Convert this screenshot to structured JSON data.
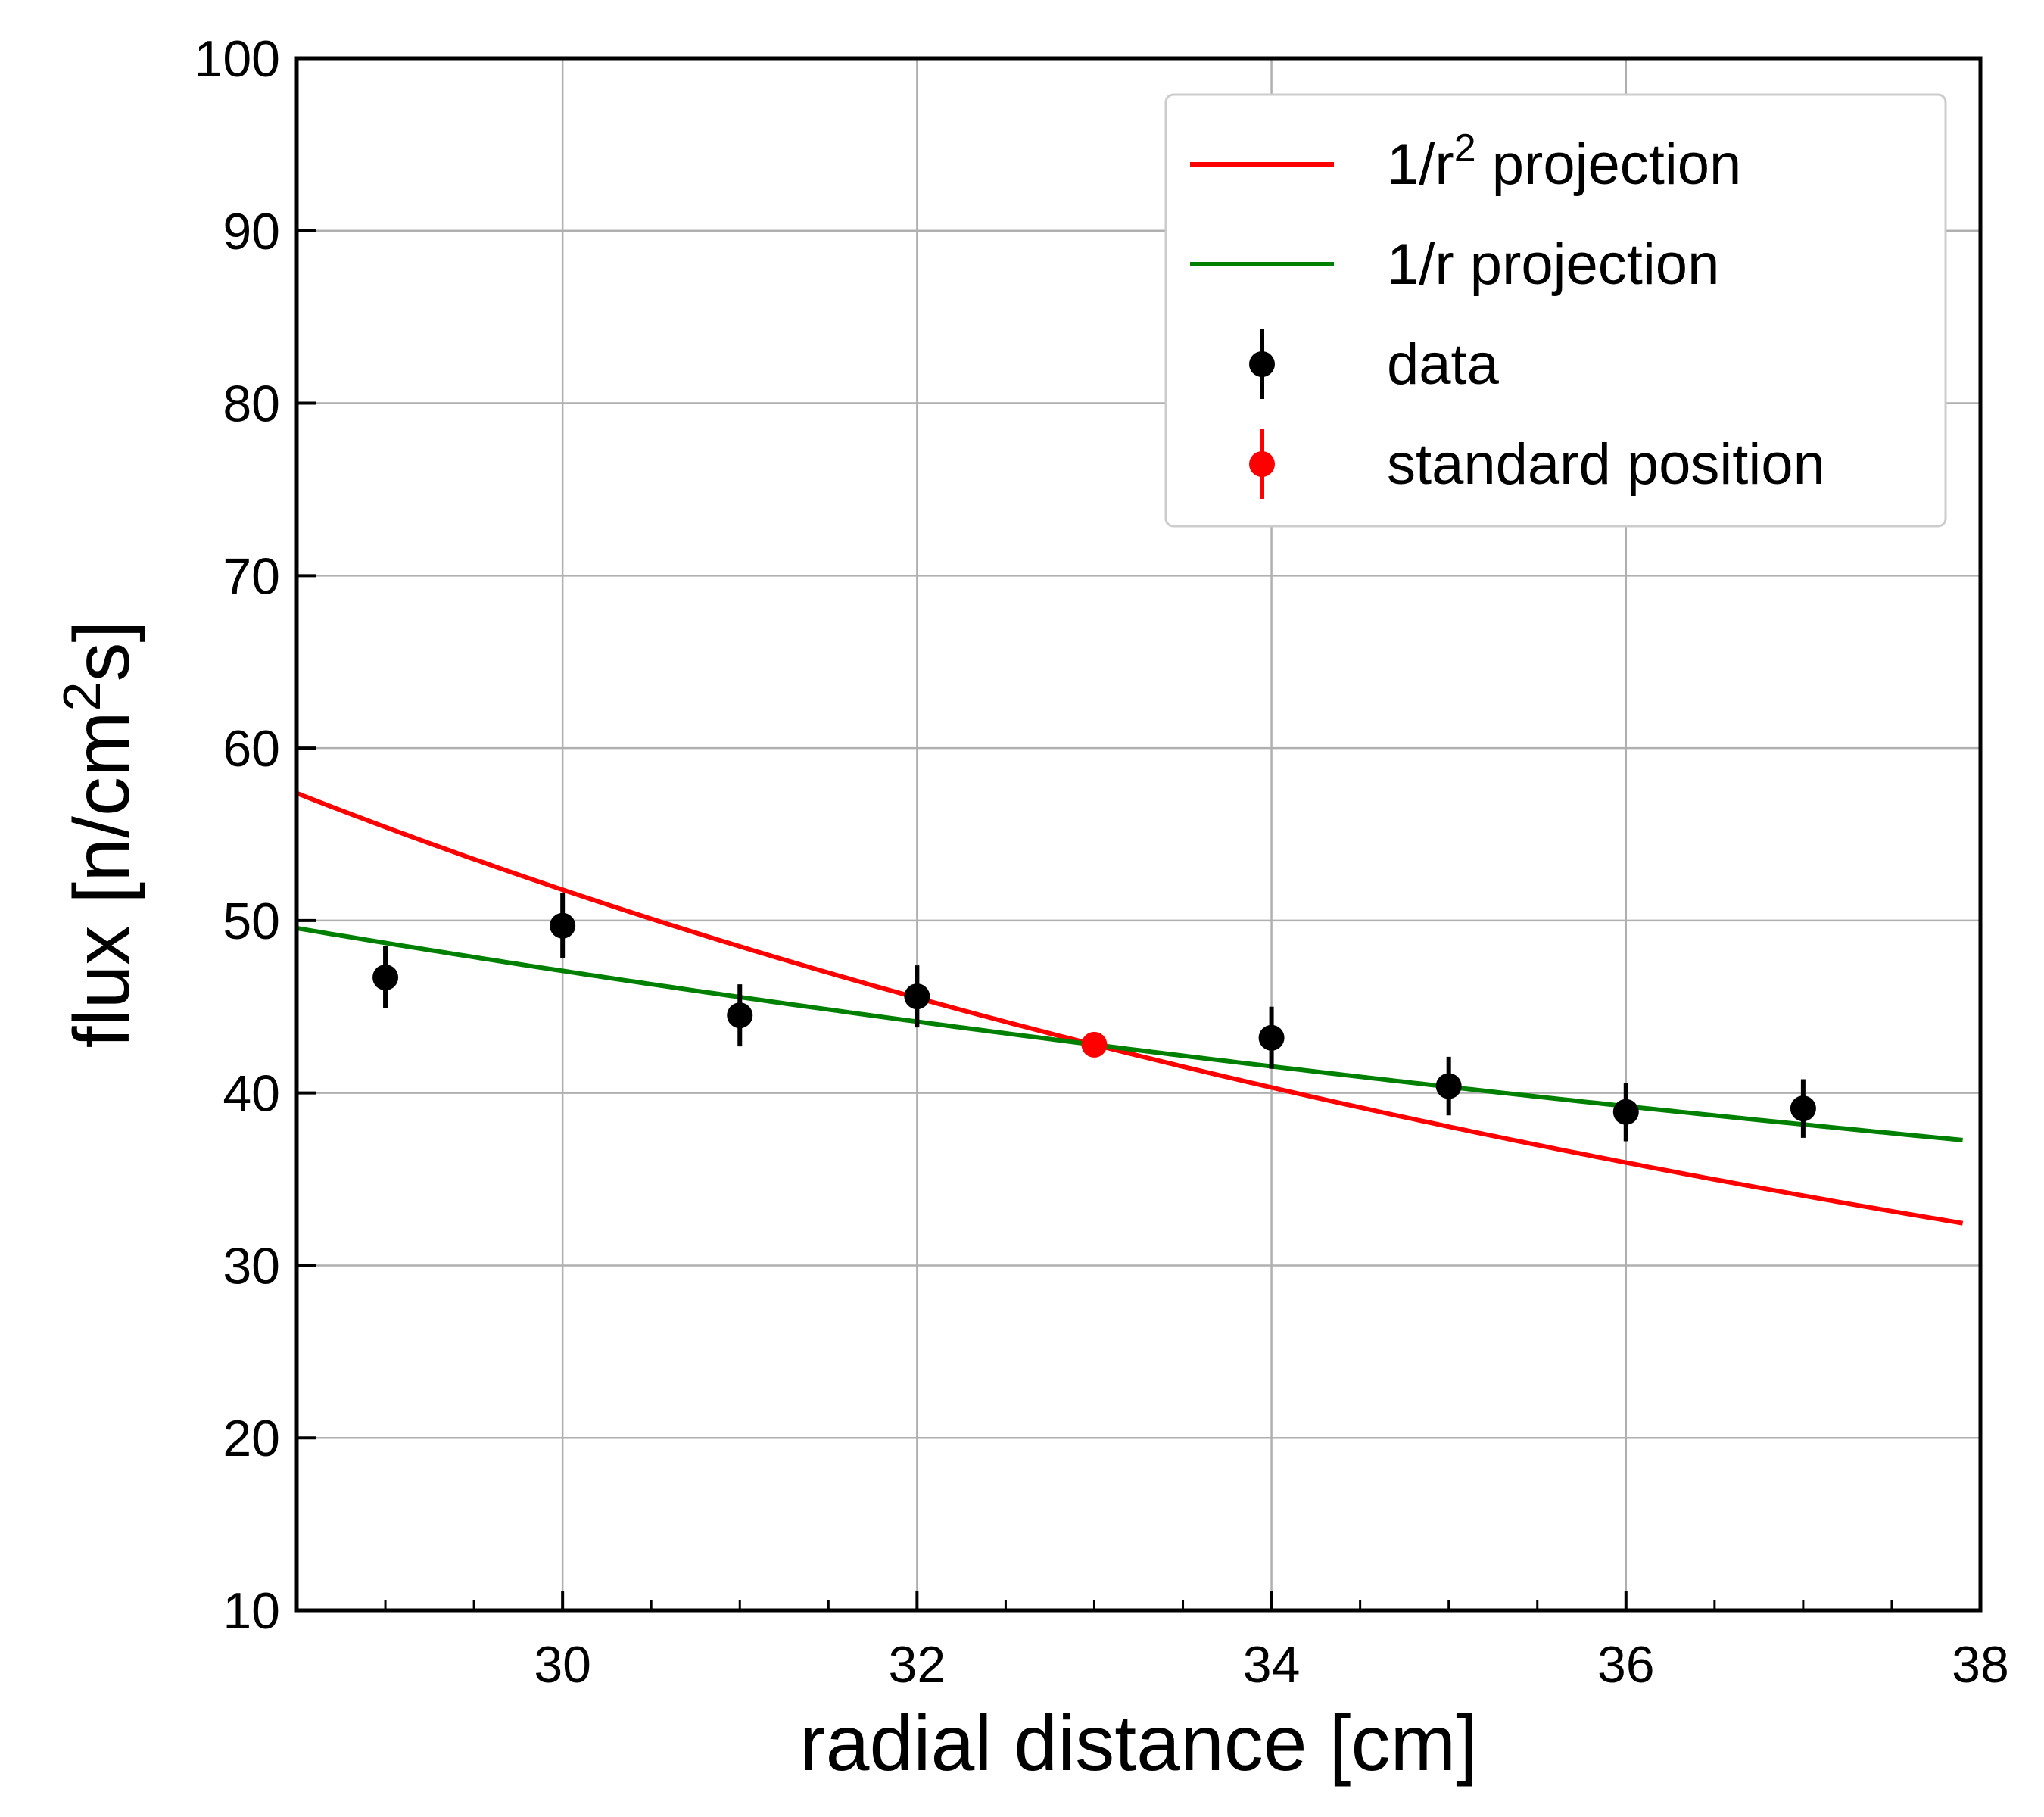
{
  "chart_data": {
    "type": "scatter",
    "xlabel": "radial distance [cm]",
    "ylabel": "flux [n/cm²s]",
    "ylabel_parts": {
      "pre": "flux [n/cm",
      "sup": "2",
      "post": "s]"
    },
    "xlim": [
      28.5,
      38.0
    ],
    "ylim": [
      10,
      100
    ],
    "x_ticks": [
      30,
      32,
      34,
      36,
      38
    ],
    "x_minor_step": 0.5,
    "y_ticks": [
      10,
      20,
      30,
      40,
      50,
      60,
      70,
      80,
      90,
      100
    ],
    "grid": true,
    "legend_position": "top-right",
    "reference": {
      "x": 33,
      "y": 42.8
    },
    "series": [
      {
        "name": "1/r² projection",
        "name_parts": {
          "pre": "1/r",
          "sup": "2",
          "post": " projection"
        },
        "kind": "line",
        "color": "#ff0000",
        "model": "inverse_square",
        "x_range": [
          28.5,
          37.9
        ]
      },
      {
        "name": "1/r projection",
        "name_parts": {
          "pre": "1/r projection",
          "sup": "",
          "post": ""
        },
        "kind": "line",
        "color": "#008000",
        "model": "inverse",
        "x_range": [
          28.5,
          37.9
        ]
      },
      {
        "name": "data",
        "name_parts": {
          "pre": "data",
          "sup": "",
          "post": ""
        },
        "kind": "errorbar",
        "color": "#000000",
        "points": [
          {
            "x": 29,
            "y": 46.7,
            "err": 1.8
          },
          {
            "x": 30,
            "y": 49.7,
            "err": 1.9
          },
          {
            "x": 31,
            "y": 44.5,
            "err": 1.8
          },
          {
            "x": 32,
            "y": 45.6,
            "err": 1.8
          },
          {
            "x": 34,
            "y": 43.2,
            "err": 1.8
          },
          {
            "x": 35,
            "y": 40.4,
            "err": 1.7
          },
          {
            "x": 36,
            "y": 38.9,
            "err": 1.7
          },
          {
            "x": 37,
            "y": 39.1,
            "err": 1.7
          }
        ]
      },
      {
        "name": "standard position",
        "name_parts": {
          "pre": "standard position",
          "sup": "",
          "post": ""
        },
        "kind": "errorbar",
        "color": "#ff0000",
        "points": [
          {
            "x": 33,
            "y": 42.8,
            "err": 0.3
          }
        ]
      }
    ]
  }
}
